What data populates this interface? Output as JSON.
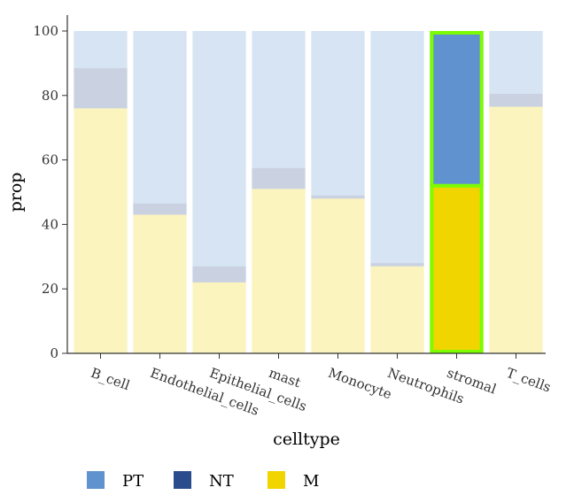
{
  "chart_data": {
    "type": "bar",
    "stacked": true,
    "xlabel": "celltype",
    "ylabel": "prop",
    "ylim": [
      0,
      100
    ],
    "yticks": [
      0,
      20,
      40,
      60,
      80,
      100
    ],
    "categories": [
      "B_cell",
      "Endothelial_cells",
      "Epithelial_cells",
      "mast",
      "Monocyte",
      "Neutrophils",
      "stromal",
      "T_cells"
    ],
    "series": [
      {
        "name": "M",
        "color": "#F0D500",
        "values": [
          76,
          43,
          22,
          51,
          48,
          27,
          52,
          76.5
        ]
      },
      {
        "name": "NT",
        "color": "#2A4B8C",
        "values": [
          12.5,
          3.5,
          5,
          6.5,
          1,
          1,
          0.5,
          4
        ]
      },
      {
        "name": "PT",
        "color": "#5F92CE",
        "values": [
          11.5,
          53.5,
          73,
          42.5,
          51,
          72,
          47.5,
          19.5
        ]
      }
    ],
    "legend": {
      "position": "bottom",
      "order": [
        "PT",
        "NT",
        "M"
      ]
    },
    "highlighted_category": "stromal",
    "highlight_color": "#7CFC00",
    "grid": false
  }
}
